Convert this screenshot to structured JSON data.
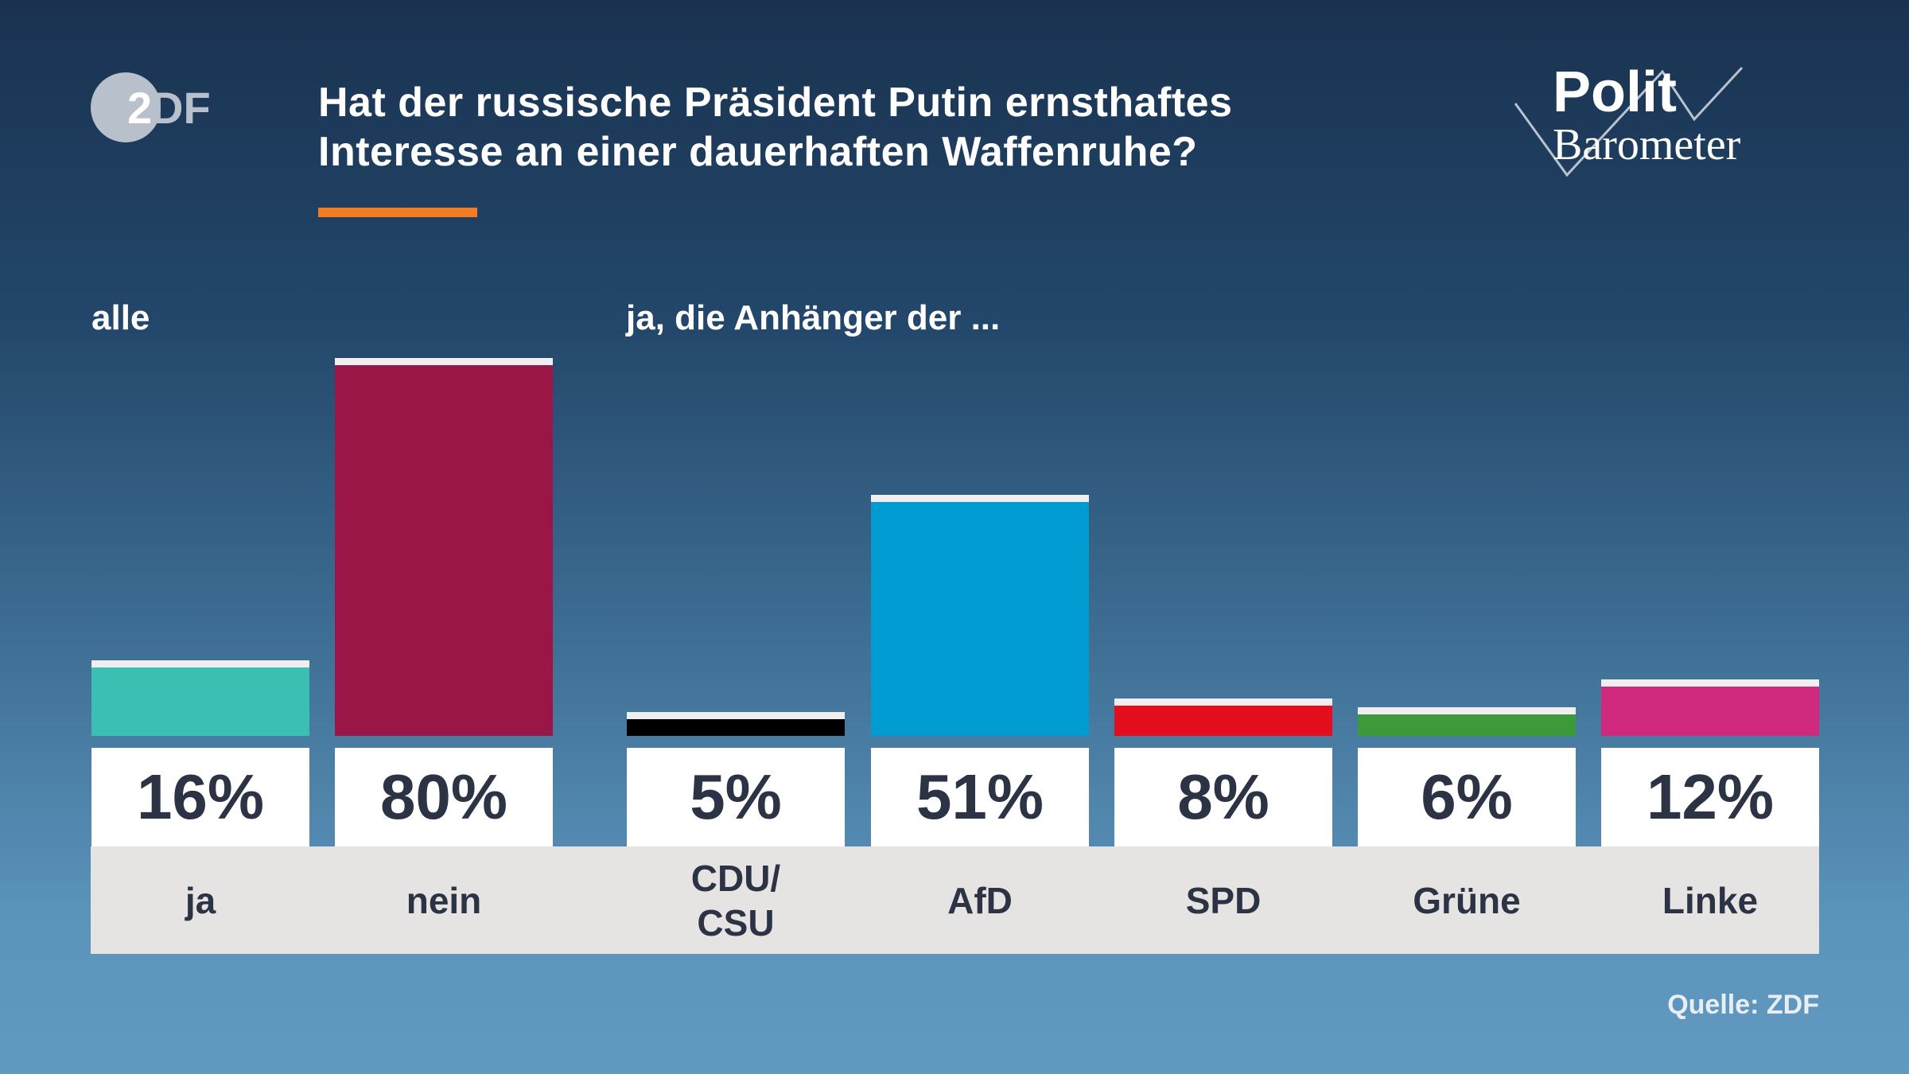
{
  "header": {
    "logo_text": "ZDF",
    "title_line1": "Hat der russische Präsident Putin ernsthaftes",
    "title_line2": "Interesse an einer dauerhaften Waffenruhe?",
    "brand_logo_line1": "Polit",
    "brand_logo_line2": "Barometer",
    "accent_color": "#f47b20"
  },
  "chart_data": {
    "type": "bar",
    "title": "Hat der russische Präsident Putin ernsthaftes Interesse an einer dauerhaften Waffenruhe?",
    "groups": [
      {
        "label": "alle",
        "categories": [
          "ja",
          "nein"
        ]
      },
      {
        "label": "ja, die Anhänger der ...",
        "categories": [
          "CDU/ CSU",
          "AfD",
          "SPD",
          "Grüne",
          "Linke"
        ]
      }
    ],
    "categories": [
      "ja",
      "nein",
      "CDU/ CSU",
      "AfD",
      "SPD",
      "Grüne",
      "Linke"
    ],
    "values": [
      16,
      80,
      5,
      51,
      8,
      6,
      12
    ],
    "value_labels": [
      "16%",
      "80%",
      "5%",
      "51%",
      "8%",
      "6%",
      "12%"
    ],
    "colors": [
      "#3bbfb3",
      "#9a1646",
      "#000000",
      "#009bd0",
      "#e30d1c",
      "#3c9a3a",
      "#d02a7f"
    ],
    "unit": "%",
    "ylim": [
      0,
      80
    ],
    "grid": false
  },
  "footer": {
    "source": "Quelle: ZDF"
  }
}
